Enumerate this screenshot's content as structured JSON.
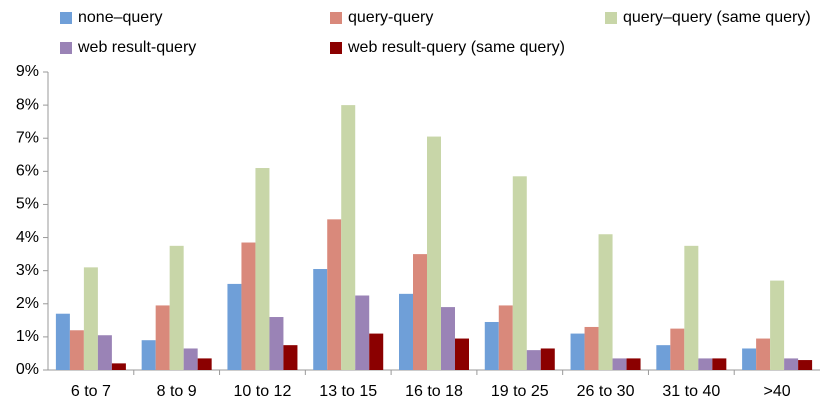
{
  "chart_data": {
    "type": "bar",
    "categories": [
      "6 to 7",
      "8 to 9",
      "10 to 12",
      "13 to 15",
      "16 to 18",
      "19 to 25",
      "26 to 30",
      "31 to 40",
      ">40"
    ],
    "series": [
      {
        "name": "none–query",
        "color": "#6f9fd8",
        "values": [
          1.7,
          0.9,
          2.6,
          3.05,
          2.3,
          1.45,
          1.1,
          0.75,
          0.65
        ]
      },
      {
        "name": "query-query",
        "color": "#d9897b",
        "values": [
          1.2,
          1.95,
          3.85,
          4.55,
          3.5,
          1.95,
          1.3,
          1.25,
          0.95
        ]
      },
      {
        "name": "query–query (same query)",
        "color": "#c8d6a8",
        "values": [
          3.1,
          3.75,
          6.1,
          8.0,
          7.05,
          5.85,
          4.1,
          3.75,
          2.7
        ]
      },
      {
        "name": "web result-query",
        "color": "#9a83b6",
        "values": [
          1.05,
          0.65,
          1.6,
          2.25,
          1.9,
          0.6,
          0.35,
          0.35,
          0.35
        ]
      },
      {
        "name": "web result-query (same query)",
        "color": "#8b0000",
        "values": [
          0.2,
          0.35,
          0.75,
          1.1,
          0.95,
          0.65,
          0.35,
          0.35,
          0.3
        ]
      }
    ],
    "ylim": [
      0,
      9
    ],
    "yticks": [
      {
        "value": 0,
        "label": "0%"
      },
      {
        "value": 1,
        "label": "1%"
      },
      {
        "value": 2,
        "label": "2%"
      },
      {
        "value": 3,
        "label": "3%"
      },
      {
        "value": 4,
        "label": "4%"
      },
      {
        "value": 5,
        "label": "5%"
      },
      {
        "value": 6,
        "label": "6%"
      },
      {
        "value": 7,
        "label": "7%"
      },
      {
        "value": 8,
        "label": "8%"
      },
      {
        "value": 9,
        "label": "9%"
      }
    ],
    "grid": false,
    "legend": "top"
  }
}
